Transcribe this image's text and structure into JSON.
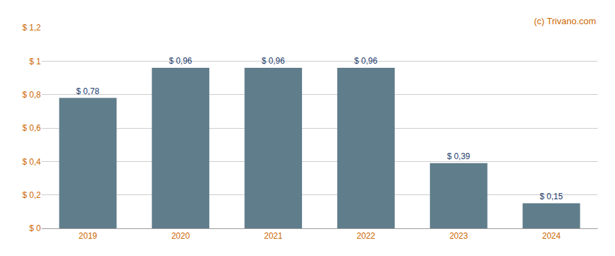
{
  "chart_data": {
    "type": "bar",
    "categories": [
      "2019",
      "2020",
      "2021",
      "2022",
      "2023",
      "2024"
    ],
    "values": [
      0.78,
      0.96,
      0.96,
      0.96,
      0.39,
      0.15
    ],
    "value_labels": [
      "$ 0,78",
      "$ 0,96",
      "$ 0,96",
      "$ 0,96",
      "$ 0,39",
      "$ 0,15"
    ],
    "data_labels": true,
    "color": "#607d8b",
    "ylim": [
      0,
      1.2
    ],
    "yticks": [
      {
        "value": 0,
        "label": "$ 0"
      },
      {
        "value": 0.2,
        "label": "$ 0,2"
      },
      {
        "value": 0.4,
        "label": "$ 0,4"
      },
      {
        "value": 0.6,
        "label": "$ 0,6"
      },
      {
        "value": 0.8,
        "label": "$ 0,8"
      },
      {
        "value": 1.0,
        "label": "$ 1"
      },
      {
        "value": 1.2,
        "label": "$ 1,2"
      }
    ],
    "grid": true,
    "annotations": [
      "(c) Trivano.com"
    ]
  }
}
